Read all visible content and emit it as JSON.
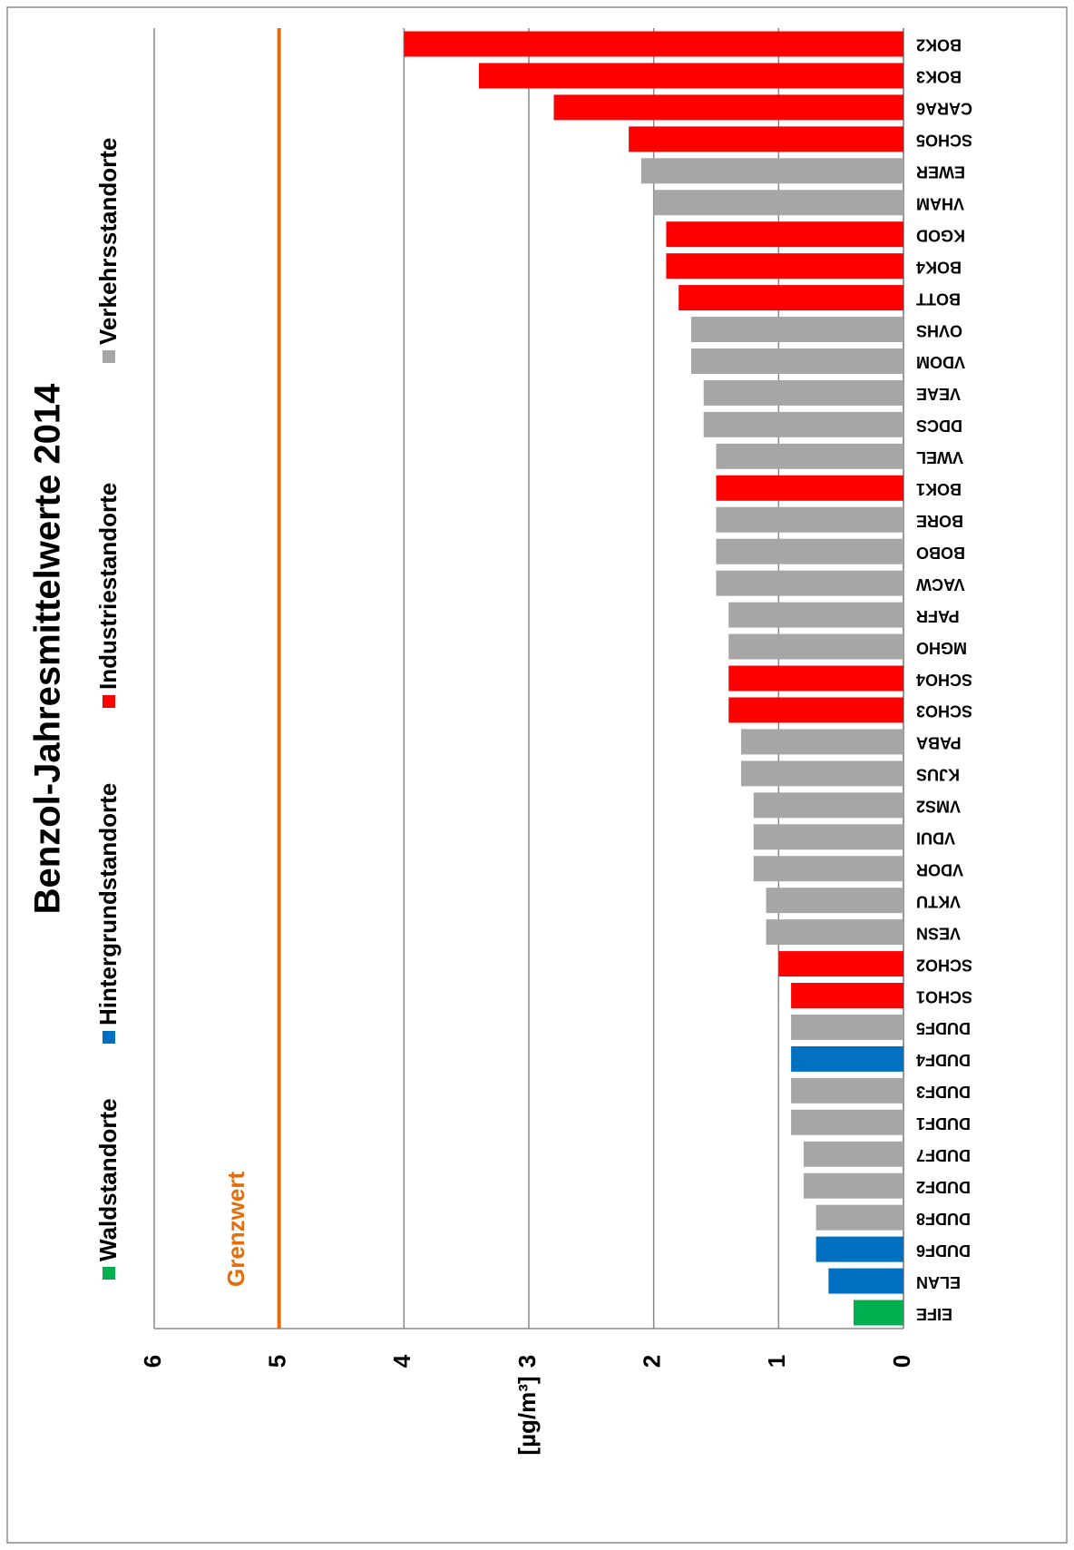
{
  "chart_data": {
    "type": "bar",
    "title": "Benzol-Jahresmittelwerte 2014",
    "y_label": "[µg/m³]",
    "categories": [
      "EIFE",
      "ELAN",
      "DUDF6",
      "DUDF8",
      "DUDF2",
      "DUDF7",
      "DUDF1",
      "DUDF3",
      "DUDF4",
      "DUDF5",
      "SCHO1",
      "SCHO2",
      "VESN",
      "VKTU",
      "VDOR",
      "VDUI",
      "VMS2",
      "KJUS",
      "PABA",
      "SCHO3",
      "SCHO4",
      "MGHO",
      "PAFR",
      "VACW",
      "BOBO",
      "BORE",
      "BOK1",
      "VWEL",
      "DDCS",
      "VEAE",
      "VDOM",
      "OVHS",
      "BOTT",
      "BOK4",
      "KGOD",
      "VHAM",
      "EWER",
      "SCHO5",
      "CARA6",
      "BOK3",
      "BOK2"
    ],
    "series": [
      {
        "name": "Waldstandorte",
        "color": "#00b050",
        "values": [
          0.4,
          null,
          null,
          null,
          null,
          null,
          null,
          null,
          null,
          null,
          null,
          null,
          null,
          null,
          null,
          null,
          null,
          null,
          null,
          null,
          null,
          null,
          null,
          null,
          null,
          null,
          null,
          null,
          null,
          null,
          null,
          null,
          null,
          null,
          null,
          null,
          null,
          null,
          null,
          null,
          null
        ]
      },
      {
        "name": "Hintergrundstandorte",
        "color": "#0070c0",
        "values": [
          null,
          0.6,
          0.7,
          null,
          null,
          null,
          null,
          null,
          0.9,
          null,
          null,
          null,
          null,
          null,
          null,
          null,
          null,
          null,
          null,
          null,
          null,
          null,
          null,
          null,
          null,
          null,
          null,
          null,
          null,
          null,
          null,
          null,
          null,
          null,
          null,
          null,
          null,
          null,
          null,
          null,
          null
        ]
      },
      {
        "name": "Industriestandorte",
        "color": "#ff0000",
        "values": [
          null,
          null,
          null,
          null,
          null,
          null,
          null,
          null,
          null,
          null,
          0.9,
          1.0,
          null,
          null,
          null,
          null,
          null,
          null,
          null,
          1.4,
          1.4,
          null,
          null,
          null,
          null,
          null,
          1.5,
          null,
          null,
          null,
          null,
          null,
          1.8,
          1.9,
          1.9,
          null,
          null,
          2.2,
          2.8,
          3.4,
          4.0
        ]
      },
      {
        "name": "Verkehrsstandorte",
        "color": "#a6a6a6",
        "values": [
          null,
          null,
          null,
          0.7,
          0.8,
          0.8,
          0.9,
          0.9,
          null,
          0.9,
          null,
          null,
          1.1,
          1.1,
          1.2,
          1.2,
          1.2,
          1.3,
          1.3,
          null,
          null,
          1.4,
          1.4,
          1.5,
          1.5,
          1.5,
          null,
          1.5,
          1.6,
          1.6,
          1.7,
          1.7,
          null,
          null,
          null,
          2.0,
          2.1,
          null,
          null,
          null,
          null
        ]
      }
    ],
    "reference_line": {
      "value": 5,
      "label": "Grenzwert",
      "color": "#e46c0a"
    },
    "ylim": [
      0,
      6
    ],
    "yticks": [
      0,
      1,
      2,
      3,
      4,
      5,
      6
    ],
    "grid": true
  }
}
